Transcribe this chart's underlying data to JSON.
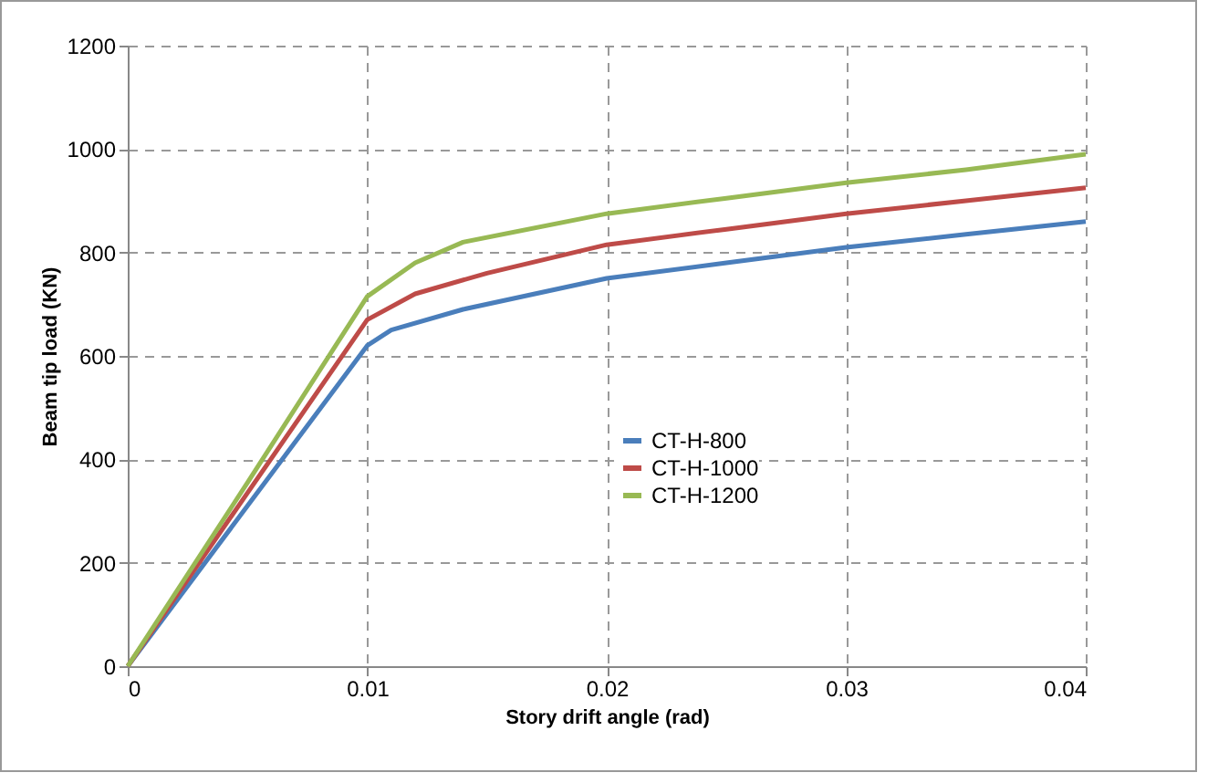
{
  "chart_data": {
    "type": "line",
    "xlabel": "Story drift angle (rad)",
    "ylabel": "Beam tip load (KN)",
    "xlim": [
      0,
      0.04
    ],
    "xticks": [
      0,
      0.01,
      0.02,
      0.03,
      0.04
    ],
    "ylim": [
      0,
      1200
    ],
    "yticks": [
      0,
      200,
      400,
      600,
      800,
      1000,
      1200
    ],
    "grid": true,
    "legend": "bottom right",
    "marker": "none",
    "series": [
      {
        "name": "CT-H-800",
        "color": "#4a7ebb",
        "x": [
          0,
          0.005,
          0.01,
          0.011,
          0.014,
          0.02,
          0.025,
          0.03,
          0.035,
          0.04
        ],
        "values": [
          0,
          310,
          620,
          650,
          690,
          750,
          780,
          810,
          835,
          860
        ]
      },
      {
        "name": "CT-H-1000",
        "color": "#be4b48",
        "x": [
          0,
          0.005,
          0.01,
          0.012,
          0.015,
          0.02,
          0.025,
          0.03,
          0.035,
          0.04
        ],
        "values": [
          0,
          335,
          670,
          720,
          760,
          815,
          845,
          875,
          900,
          925
        ]
      },
      {
        "name": "CT-H-1200",
        "color": "#98b954",
        "x": [
          0,
          0.005,
          0.01,
          0.012,
          0.014,
          0.02,
          0.025,
          0.03,
          0.035,
          0.04
        ],
        "values": [
          0,
          355,
          715,
          780,
          820,
          875,
          905,
          935,
          960,
          990
        ]
      }
    ]
  }
}
